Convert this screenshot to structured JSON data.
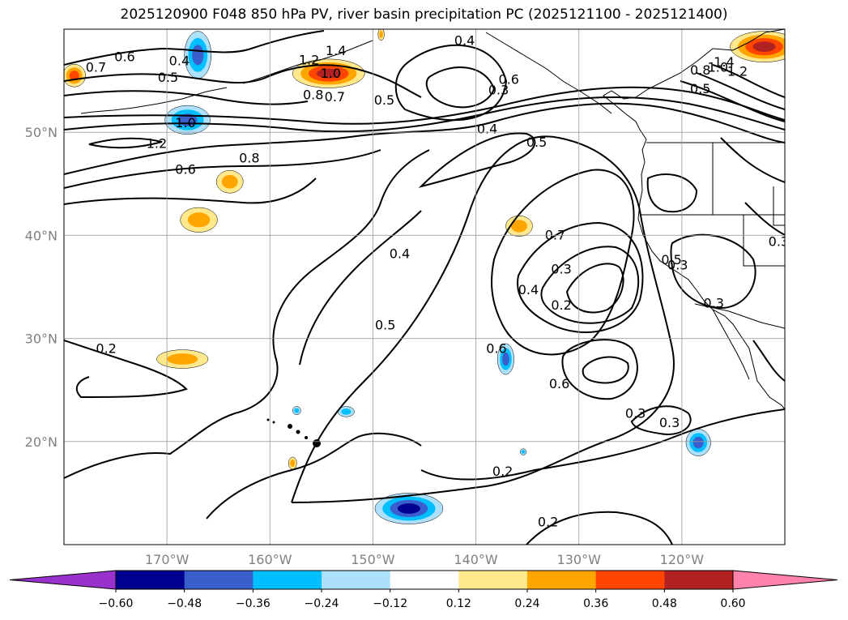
{
  "title": "2025120900 F048 850 hPa PV, river basin precipitation PC (2025121100 - 2025121400)",
  "chart_data": {
    "type": "heatmap",
    "map": {
      "lon_range": [
        -180,
        -110
      ],
      "lat_range": [
        10,
        60
      ],
      "grid": true,
      "lon_ticks": [
        -170,
        -160,
        -150,
        -140,
        -130,
        -120
      ],
      "lat_ticks": [
        50,
        40,
        30,
        20
      ],
      "lon_tick_labels": [
        "170°W",
        "160°W",
        "150°W",
        "140°W",
        "130°W",
        "120°W"
      ],
      "lat_tick_labels": [
        "50°N",
        "40°N",
        "30°N",
        "20°N"
      ]
    },
    "contour_labels": [
      {
        "text": "0.7",
        "lon": -176.9,
        "lat": 56.2
      },
      {
        "text": "0.6",
        "lon": -174.1,
        "lat": 57.2
      },
      {
        "text": "0.4",
        "lon": -168.8,
        "lat": 56.8
      },
      {
        "text": "0.5",
        "lon": -169.9,
        "lat": 55.2
      },
      {
        "text": "1.2",
        "lon": -156.2,
        "lat": 56.9
      },
      {
        "text": "1.4",
        "lon": -153.6,
        "lat": 57.8
      },
      {
        "text": "1.0",
        "lon": -154.1,
        "lat": 55.6
      },
      {
        "text": "0.8",
        "lon": -155.8,
        "lat": 53.5
      },
      {
        "text": "0.7",
        "lon": -153.7,
        "lat": 53.3
      },
      {
        "text": "0.5",
        "lon": -148.9,
        "lat": 53.0
      },
      {
        "text": "0.4",
        "lon": -141.1,
        "lat": 58.8
      },
      {
        "text": "0.3",
        "lon": -137.8,
        "lat": 54.0
      },
      {
        "text": "0.6",
        "lon": -136.8,
        "lat": 55.0
      },
      {
        "text": "0.4",
        "lon": -138.9,
        "lat": 50.2
      },
      {
        "text": "0.5",
        "lon": -134.1,
        "lat": 48.9
      },
      {
        "text": "1.0",
        "lon": -168.2,
        "lat": 50.8
      },
      {
        "text": "1.2",
        "lon": -171.0,
        "lat": 48.8
      },
      {
        "text": "0.8",
        "lon": -162.0,
        "lat": 47.4
      },
      {
        "text": "0.6",
        "lon": -168.2,
        "lat": 46.3
      },
      {
        "text": "1.4",
        "lon": -115.9,
        "lat": 56.7
      },
      {
        "text": "1.2",
        "lon": -114.6,
        "lat": 55.8
      },
      {
        "text": "1.0",
        "lon": -116.5,
        "lat": 56.2
      },
      {
        "text": "0.8",
        "lon": -118.2,
        "lat": 55.9
      },
      {
        "text": "0.5",
        "lon": -118.2,
        "lat": 54.1
      },
      {
        "text": "0.7",
        "lon": -132.3,
        "lat": 39.9
      },
      {
        "text": "0.3",
        "lon": -131.7,
        "lat": 36.6
      },
      {
        "text": "0.4",
        "lon": -134.9,
        "lat": 34.6
      },
      {
        "text": "0.2",
        "lon": -131.7,
        "lat": 33.1
      },
      {
        "text": "0.6",
        "lon": -138.0,
        "lat": 28.9
      },
      {
        "text": "0.6",
        "lon": -131.9,
        "lat": 25.5
      },
      {
        "text": "0.3",
        "lon": -120.4,
        "lat": 37.0
      },
      {
        "text": "0.5",
        "lon": -121.0,
        "lat": 37.5
      },
      {
        "text": "0.3",
        "lon": -116.9,
        "lat": 33.3
      },
      {
        "text": "0.4",
        "lon": -147.4,
        "lat": 38.1
      },
      {
        "text": "0.5",
        "lon": -148.8,
        "lat": 31.2
      },
      {
        "text": "0.2",
        "lon": -175.9,
        "lat": 28.9
      },
      {
        "text": "0.3",
        "lon": -124.5,
        "lat": 22.6
      },
      {
        "text": "0.3",
        "lon": -121.2,
        "lat": 21.7
      },
      {
        "text": "0.2",
        "lon": -137.4,
        "lat": 17.0
      },
      {
        "text": "0.2",
        "lon": -133.0,
        "lat": 12.1
      },
      {
        "text": "0.3",
        "lon": -110.6,
        "lat": 39.3
      }
    ],
    "fill_regions": [
      {
        "sign": "negative",
        "value": -0.36,
        "lon": -167.0,
        "lat": 57.5,
        "rx": 1.3,
        "ry": 2.3
      },
      {
        "sign": "negative",
        "value": -0.36,
        "lon": -168.0,
        "lat": 51.2,
        "rx": 2.2,
        "ry": 1.4
      },
      {
        "sign": "negative",
        "value": -0.48,
        "lon": -146.5,
        "lat": 13.5,
        "rx": 3.3,
        "ry": 1.5
      },
      {
        "sign": "negative",
        "value": -0.36,
        "lon": -137.1,
        "lat": 28.0,
        "rx": 0.8,
        "ry": 1.5
      },
      {
        "sign": "negative",
        "value": -0.36,
        "lon": -118.4,
        "lat": 19.9,
        "rx": 1.2,
        "ry": 1.3
      },
      {
        "sign": "negative",
        "value": -0.24,
        "lon": -157.4,
        "lat": 23.0,
        "rx": 0.4,
        "ry": 0.4
      },
      {
        "sign": "negative",
        "value": -0.24,
        "lon": -152.6,
        "lat": 22.9,
        "rx": 0.8,
        "ry": 0.5
      },
      {
        "sign": "negative",
        "value": -0.24,
        "lon": -135.4,
        "lat": 19.0,
        "rx": 0.3,
        "ry": 0.3
      },
      {
        "sign": "positive",
        "value": 0.48,
        "lon": -154.3,
        "lat": 55.7,
        "rx": 3.5,
        "ry": 1.4
      },
      {
        "sign": "positive",
        "value": 0.48,
        "lon": -112.0,
        "lat": 58.3,
        "rx": 3.3,
        "ry": 1.5
      },
      {
        "sign": "positive",
        "value": 0.36,
        "lon": -179.0,
        "lat": 55.5,
        "rx": 1.1,
        "ry": 1.1
      },
      {
        "sign": "positive",
        "value": 0.24,
        "lon": -163.9,
        "lat": 45.2,
        "rx": 1.3,
        "ry": 1.1
      },
      {
        "sign": "positive",
        "value": 0.24,
        "lon": -166.9,
        "lat": 41.5,
        "rx": 1.8,
        "ry": 1.2
      },
      {
        "sign": "positive",
        "value": 0.24,
        "lon": -135.8,
        "lat": 40.9,
        "rx": 1.3,
        "ry": 1.0
      },
      {
        "sign": "positive",
        "value": 0.24,
        "lon": -168.5,
        "lat": 28.0,
        "rx": 2.5,
        "ry": 0.9
      },
      {
        "sign": "positive",
        "value": 0.24,
        "lon": -157.8,
        "lat": 17.9,
        "rx": 0.4,
        "ry": 0.6
      },
      {
        "sign": "positive",
        "value": 0.24,
        "lon": -149.2,
        "lat": 59.5,
        "rx": 0.3,
        "ry": 0.6
      }
    ],
    "colorbar": {
      "ticks": [
        "−0.60",
        "−0.48",
        "−0.36",
        "−0.24",
        "−0.12",
        "0.12",
        "0.24",
        "0.36",
        "0.48",
        "0.60"
      ],
      "colors": [
        "#9932CC",
        "#000090",
        "#3A5FCD",
        "#00BFFF",
        "#ADE0FA",
        "#FFFFFF",
        "#FFE98C",
        "#FFA500",
        "#FF4500",
        "#B22222",
        "#FF82AB"
      ],
      "extend": "both"
    }
  }
}
